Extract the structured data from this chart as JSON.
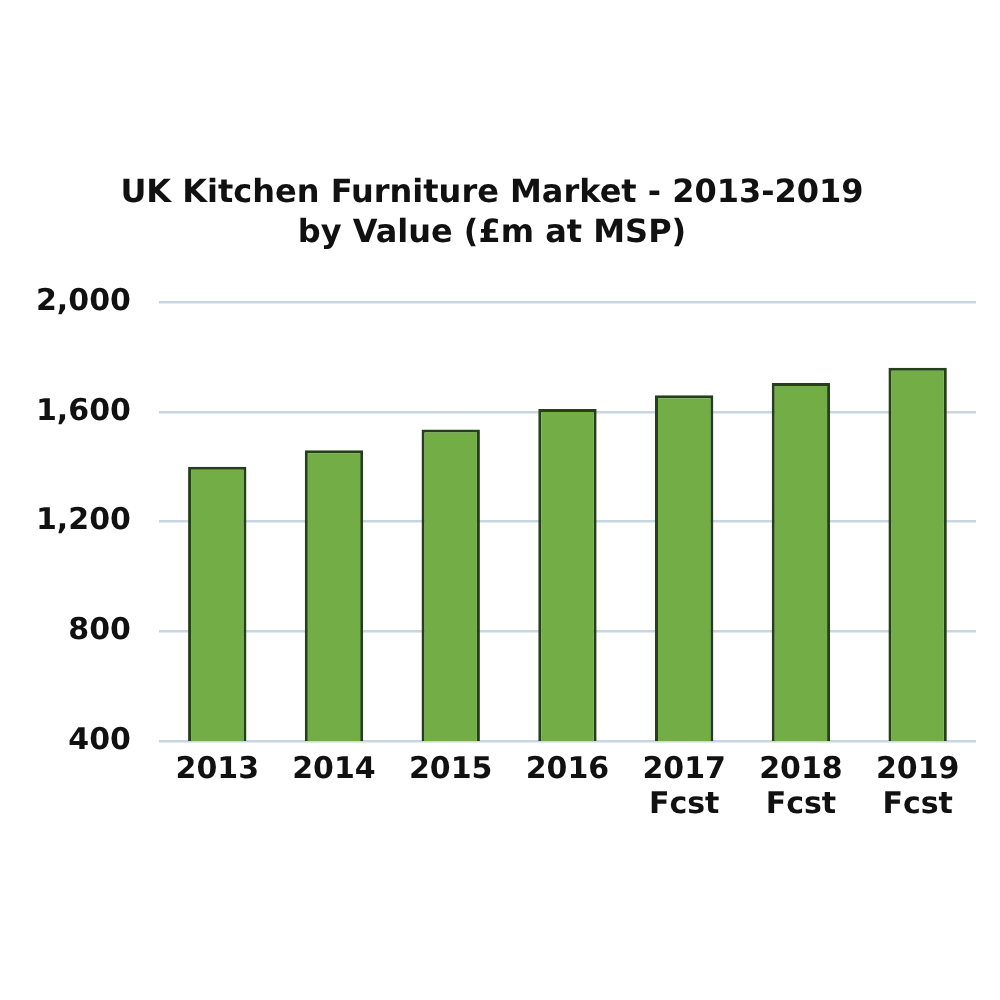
{
  "chart_data": {
    "type": "bar",
    "title": "UK Kitchen Furniture Market - 2013-2019\nby Value (£m at MSP)",
    "categories": [
      "2013",
      "2014",
      "2015",
      "2016",
      "2017\nFcst",
      "2018\nFcst",
      "2019\nFcst"
    ],
    "values": [
      1400,
      1460,
      1535,
      1610,
      1660,
      1705,
      1760
    ],
    "color": "#72ad45",
    "ylim": [
      400,
      2000
    ],
    "yticks": [
      {
        "value": 400,
        "label": "400"
      },
      {
        "value": 800,
        "label": "800"
      },
      {
        "value": 1200,
        "label": "1,200"
      },
      {
        "value": 1600,
        "label": "1,600"
      },
      {
        "value": 2000,
        "label": "2,000"
      }
    ],
    "grid": "y",
    "legend": false
  }
}
